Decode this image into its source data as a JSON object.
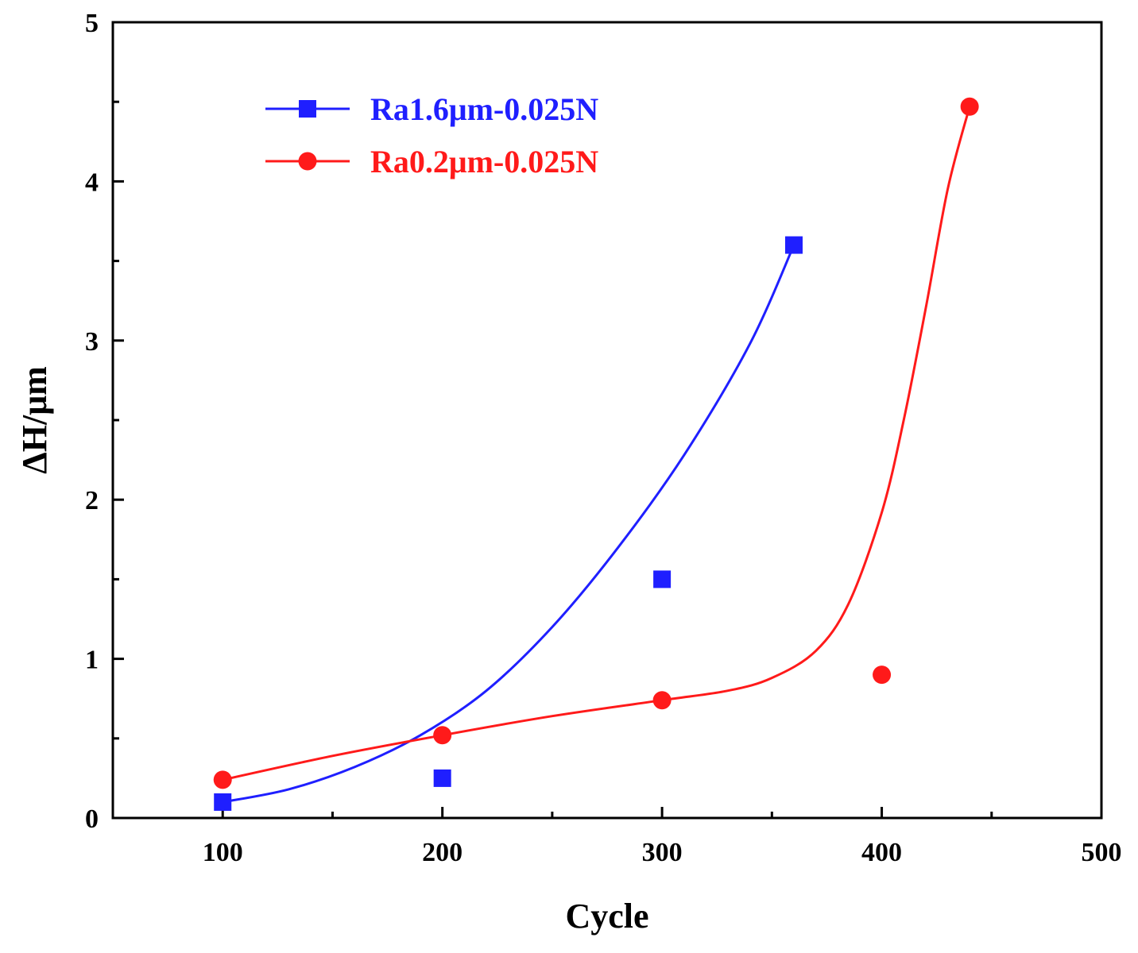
{
  "chart_data": {
    "type": "scatter",
    "xlabel": "Cycle",
    "ylabel": "ΔH/μm",
    "xlim": [
      50,
      500
    ],
    "ylim": [
      0,
      5
    ],
    "x_ticks": [
      100,
      200,
      300,
      400,
      500
    ],
    "x_minor_ticks": [
      150,
      250,
      350,
      450
    ],
    "y_ticks": [
      0,
      1,
      2,
      3,
      4,
      5
    ],
    "y_minor_ticks": [
      0.5,
      1.5,
      2.5,
      3.5,
      4.5
    ],
    "legend_position": "top-left",
    "series": [
      {
        "name": "Ra1.6μm-0.025N",
        "color": "#1f1fff",
        "marker": "square",
        "points": [
          [
            100,
            0.1
          ],
          [
            200,
            0.25
          ],
          [
            300,
            1.5
          ],
          [
            360,
            3.6
          ]
        ],
        "fit_curve": [
          [
            100,
            0.1
          ],
          [
            130,
            0.18
          ],
          [
            160,
            0.32
          ],
          [
            190,
            0.52
          ],
          [
            220,
            0.8
          ],
          [
            250,
            1.2
          ],
          [
            280,
            1.7
          ],
          [
            310,
            2.28
          ],
          [
            340,
            2.98
          ],
          [
            360,
            3.6
          ]
        ]
      },
      {
        "name": "Ra0.2μm-0.025N",
        "color": "#ff1a1a",
        "marker": "circle",
        "points": [
          [
            100,
            0.24
          ],
          [
            200,
            0.52
          ],
          [
            300,
            0.74
          ],
          [
            400,
            0.9
          ],
          [
            440,
            4.47
          ]
        ],
        "fit_curve": [
          [
            100,
            0.24
          ],
          [
            150,
            0.39
          ],
          [
            200,
            0.52
          ],
          [
            250,
            0.64
          ],
          [
            300,
            0.74
          ],
          [
            330,
            0.8
          ],
          [
            350,
            0.88
          ],
          [
            370,
            1.05
          ],
          [
            385,
            1.35
          ],
          [
            400,
            1.92
          ],
          [
            410,
            2.5
          ],
          [
            420,
            3.2
          ],
          [
            430,
            3.95
          ],
          [
            440,
            4.47
          ]
        ]
      }
    ]
  }
}
